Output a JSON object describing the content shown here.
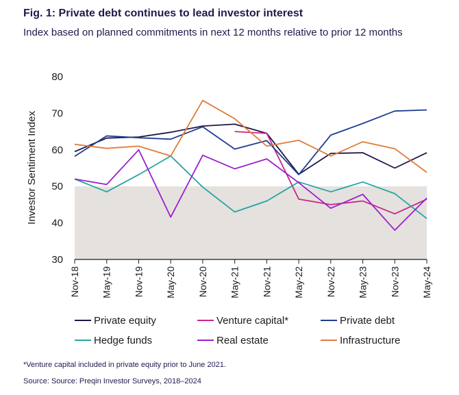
{
  "chart_data": {
    "type": "line",
    "title": "Fig. 1: Private debt continues to lead investor interest",
    "subtitle": "Index based on planned commitments in next 12 months relative to prior 12 months",
    "ylabel": "Investor Sentiment Index",
    "xlabel": "",
    "ylim": [
      30,
      80
    ],
    "yticks": [
      30,
      40,
      50,
      60,
      70,
      80
    ],
    "shaded_band": [
      30,
      50
    ],
    "grid": false,
    "legend_position": "bottom",
    "categories": [
      "Nov-18",
      "May-19",
      "Nov-19",
      "May-20",
      "Nov-20",
      "May-21",
      "Nov-21",
      "May-22",
      "Nov-22",
      "May-23",
      "Nov-23",
      "May-24"
    ],
    "series": [
      {
        "name": "Private equity",
        "color": "#1c1646",
        "values": [
          59.5,
          63.2,
          63.5,
          64.8,
          66.5,
          67.0,
          64.5,
          53.3,
          59.0,
          59.2,
          55.0,
          59.2
        ]
      },
      {
        "name": "Venture capital*",
        "color": "#c8268a",
        "values": [
          null,
          null,
          null,
          null,
          null,
          65.0,
          64.5,
          46.5,
          45.0,
          46.0,
          42.5,
          46.5
        ]
      },
      {
        "name": "Private debt",
        "color": "#1f3c8f",
        "values": [
          58.2,
          63.8,
          63.3,
          62.9,
          66.3,
          60.2,
          62.5,
          53.2,
          64.0,
          67.2,
          70.6,
          70.9
        ]
      },
      {
        "name": "Hedge funds",
        "color": "#23a6a0",
        "values": [
          52.0,
          48.5,
          53.2,
          58.3,
          49.8,
          43.0,
          46.0,
          51.2,
          48.5,
          51.2,
          48.0,
          41.2
        ]
      },
      {
        "name": "Real estate",
        "color": "#9a1fd0",
        "values": [
          52.0,
          50.5,
          60.0,
          41.6,
          58.5,
          54.8,
          57.5,
          51.0,
          44.0,
          47.8,
          38.0,
          46.8
        ]
      },
      {
        "name": "Infrastructure",
        "color": "#e07b38",
        "values": [
          61.5,
          60.4,
          61.0,
          58.3,
          73.5,
          68.5,
          61.0,
          62.6,
          58.3,
          62.2,
          60.3,
          53.8
        ]
      }
    ],
    "band_color": "#e5e1de"
  },
  "footnote": "*Venture capital included in private equity prior to June 2021.",
  "source": "Source: Source: Preqin Investor Surveys, 2018–2024"
}
